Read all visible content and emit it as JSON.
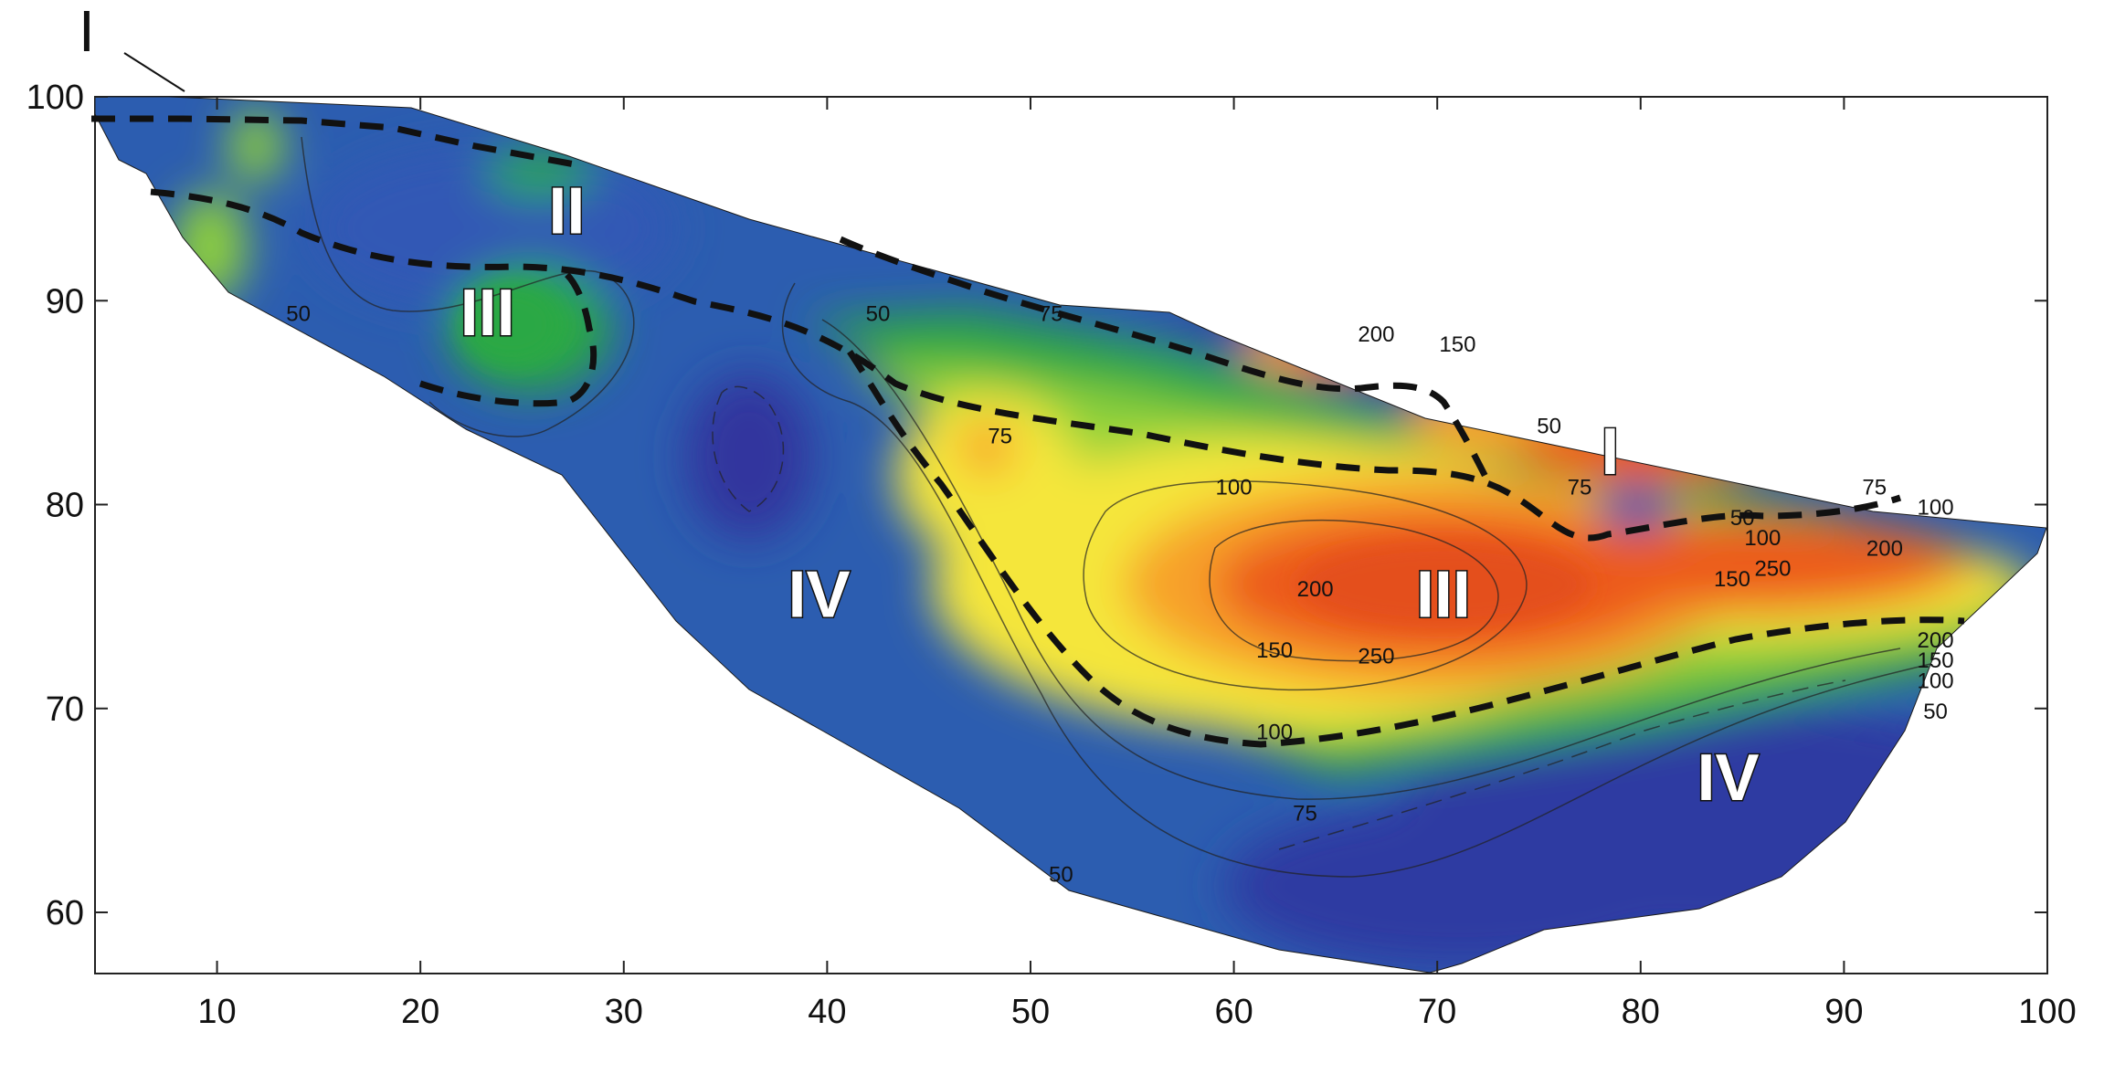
{
  "chart_data": {
    "type": "heatmap",
    "title": "",
    "xlabel": "",
    "ylabel": "",
    "xlim": [
      4,
      100
    ],
    "ylim": [
      57,
      100
    ],
    "x_ticks": [
      10,
      20,
      30,
      40,
      50,
      60,
      70,
      80,
      90,
      100
    ],
    "y_ticks": [
      60,
      70,
      80,
      90,
      100
    ],
    "colors": {
      "very_low": "#2f3da0",
      "low": "#2c5db0",
      "medium_low": "#2aa845",
      "medium": "#8fd13a",
      "medium_high": "#f5e63a",
      "high": "#f7a12a",
      "very_high": "#ec5a1c",
      "boundary": "#111111"
    },
    "contour_labels": [
      {
        "text": "50",
        "x": 14,
        "y": 89
      },
      {
        "text": "50",
        "x": 42.5,
        "y": 89
      },
      {
        "text": "75",
        "x": 51,
        "y": 89
      },
      {
        "text": "75",
        "x": 48.5,
        "y": 83
      },
      {
        "text": "100",
        "x": 60,
        "y": 80.5
      },
      {
        "text": "200",
        "x": 64,
        "y": 75.5
      },
      {
        "text": "150",
        "x": 62,
        "y": 72.5
      },
      {
        "text": "250",
        "x": 67,
        "y": 72.2
      },
      {
        "text": "100",
        "x": 62,
        "y": 68.5
      },
      {
        "text": "75",
        "x": 63.5,
        "y": 64.5
      },
      {
        "text": "50",
        "x": 51.5,
        "y": 61.5
      },
      {
        "text": "200",
        "x": 67,
        "y": 88
      },
      {
        "text": "150",
        "x": 71,
        "y": 87.5
      },
      {
        "text": "75",
        "x": 77,
        "y": 80.5
      },
      {
        "text": "50",
        "x": 85,
        "y": 79
      },
      {
        "text": "100",
        "x": 86,
        "y": 78
      },
      {
        "text": "150",
        "x": 84.5,
        "y": 76
      },
      {
        "text": "250",
        "x": 86.5,
        "y": 76.5
      },
      {
        "text": "200",
        "x": 92,
        "y": 77.5
      },
      {
        "text": "100",
        "x": 94.5,
        "y": 79.5
      },
      {
        "text": "75",
        "x": 91.5,
        "y": 80.5
      },
      {
        "text": "50",
        "x": 75.5,
        "y": 83.5
      },
      {
        "text": "200",
        "x": 94.5,
        "y": 73
      },
      {
        "text": "150",
        "x": 94.5,
        "y": 72
      },
      {
        "text": "100",
        "x": 94.5,
        "y": 71
      },
      {
        "text": "50",
        "x": 94.5,
        "y": 69.5
      }
    ],
    "zone_labels": [
      {
        "text": "II",
        "x": 27.2,
        "y": 93.3
      },
      {
        "text": "III",
        "x": 23.3,
        "y": 88.3
      },
      {
        "text": "IV",
        "x": 39.6,
        "y": 74.5
      },
      {
        "text": "III",
        "x": 70.3,
        "y": 74.5
      },
      {
        "text": "IV",
        "x": 84.3,
        "y": 65.5
      },
      {
        "text": "I",
        "x": 78.5,
        "y": 81.5
      }
    ],
    "corner_label": "I"
  }
}
